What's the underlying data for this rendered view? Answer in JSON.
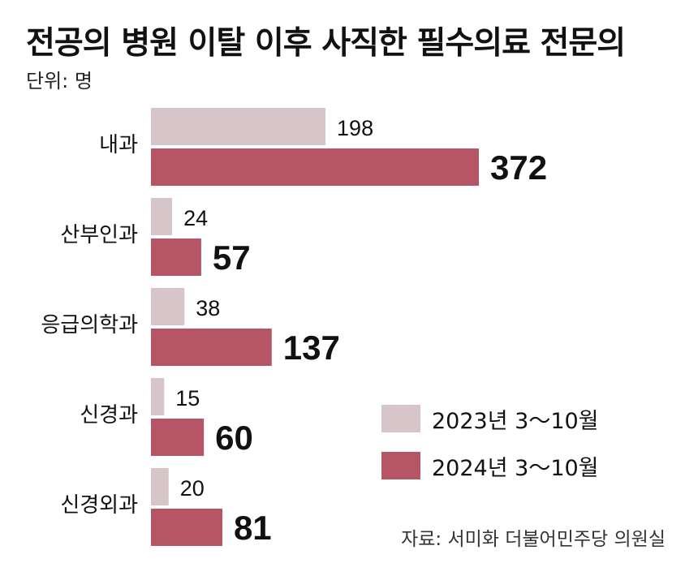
{
  "title": "전공의 병원 이탈 이후 사직한 필수의료 전문의",
  "unit_label": "단위: 명",
  "source": "자료: 서미화 더불어민주당 의원실",
  "colors": {
    "series_2023": "#d6c6c9",
    "series_2024": "#b55565"
  },
  "chart_data": {
    "type": "bar",
    "orientation": "horizontal",
    "categories": [
      "내과",
      "산부인과",
      "응급의학과",
      "신경과",
      "신경외과"
    ],
    "series": [
      {
        "name": "2023년 3～10월",
        "values": [
          198,
          24,
          38,
          15,
          20
        ]
      },
      {
        "name": "2024년 3～10월",
        "values": [
          372,
          57,
          137,
          60,
          81
        ]
      }
    ],
    "title": "전공의 병원 이탈 이후 사직한 필수의료 전문의",
    "xlabel": "",
    "ylabel": "",
    "legend_position": "bottom-right",
    "grid": false
  }
}
